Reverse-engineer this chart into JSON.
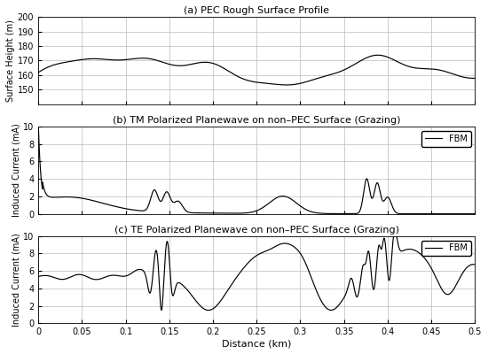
{
  "title_a": "(a) PEC Rough Surface Profile",
  "title_b": "(b) TM Polarized Planewave on non–PEC Surface (Grazing)",
  "title_c": "(c) TE Polarized Planewave on non–PEC Surface (Grazing)",
  "ylabel_a": "Surface Height (m)",
  "ylabel_b": "Induced Current (mA)",
  "ylabel_c": "Induced Current (mA)",
  "xlabel": "Distance (km)",
  "legend_label": "FBM",
  "xlim": [
    0,
    0.5
  ],
  "ylim_a": [
    140,
    200
  ],
  "ylim_b": [
    0,
    10
  ],
  "ylim_c": [
    0,
    10
  ],
  "yticks_a": [
    150,
    160,
    170,
    180,
    190,
    200
  ],
  "yticks_b": [
    0,
    2,
    4,
    6,
    8,
    10
  ],
  "yticks_c": [
    0,
    2,
    4,
    6,
    8,
    10
  ],
  "xticks": [
    0,
    0.05,
    0.1,
    0.15,
    0.2,
    0.25,
    0.3,
    0.35,
    0.4,
    0.45,
    0.5
  ],
  "line_color": "black",
  "grid_color": "#bbbbbb",
  "bg_color": "white"
}
